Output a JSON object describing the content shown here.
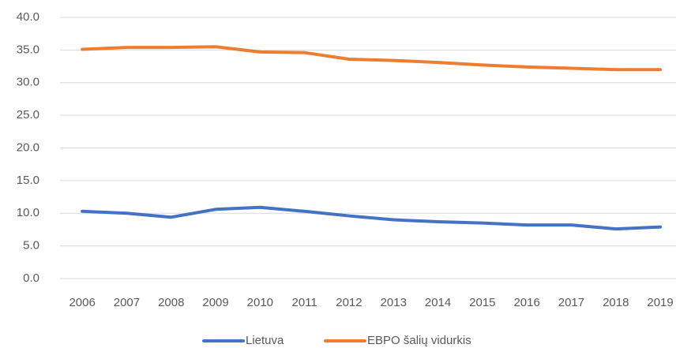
{
  "chart_data": {
    "type": "line",
    "categories": [
      "2006",
      "2007",
      "2008",
      "2009",
      "2010",
      "2011",
      "2012",
      "2013",
      "2014",
      "2015",
      "2016",
      "2017",
      "2018",
      "2019"
    ],
    "series": [
      {
        "name": "Lietuva",
        "color": "#4472c4",
        "values": [
          10.3,
          10.0,
          9.4,
          10.6,
          10.9,
          10.3,
          9.6,
          9.0,
          8.7,
          8.5,
          8.2,
          8.2,
          7.6,
          7.9
        ]
      },
      {
        "name": "EBPO šalių vidurkis",
        "color": "#ed7d31",
        "values": [
          35.1,
          35.4,
          35.4,
          35.5,
          34.7,
          34.6,
          33.6,
          33.4,
          33.1,
          32.7,
          32.4,
          32.2,
          32.0,
          32.0
        ]
      }
    ],
    "ylim": [
      0,
      40
    ],
    "yticks": [
      {
        "value": 0,
        "label": "0.0"
      },
      {
        "value": 5,
        "label": "5.0"
      },
      {
        "value": 10,
        "label": "10.0"
      },
      {
        "value": 15,
        "label": "15.0"
      },
      {
        "value": 20,
        "label": "20.0"
      },
      {
        "value": 25,
        "label": "25.0"
      },
      {
        "value": 30,
        "label": "30.0"
      },
      {
        "value": 35,
        "label": "35.0"
      },
      {
        "value": 40,
        "label": "40.0"
      }
    ],
    "grid": true,
    "legend": "bottom"
  }
}
